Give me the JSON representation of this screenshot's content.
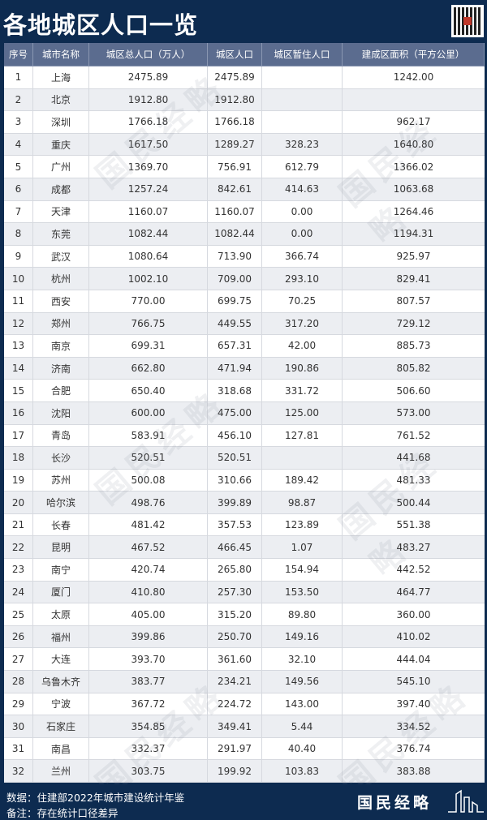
{
  "title": "各地城区人口一览",
  "headers": [
    "序号",
    "城市名称",
    "城区总人口（万人）",
    "城区人口",
    "城区暂住人口",
    "建成区面积（平方公里）"
  ],
  "rows": [
    [
      "1",
      "上海",
      "2475.89",
      "2475.89",
      "",
      "1242.00"
    ],
    [
      "2",
      "北京",
      "1912.80",
      "1912.80",
      "",
      ""
    ],
    [
      "3",
      "深圳",
      "1766.18",
      "1766.18",
      "",
      "962.17"
    ],
    [
      "4",
      "重庆",
      "1617.50",
      "1289.27",
      "328.23",
      "1640.80"
    ],
    [
      "5",
      "广州",
      "1369.70",
      "756.91",
      "612.79",
      "1366.02"
    ],
    [
      "6",
      "成都",
      "1257.24",
      "842.61",
      "414.63",
      "1063.68"
    ],
    [
      "7",
      "天津",
      "1160.07",
      "1160.07",
      "0.00",
      "1264.46"
    ],
    [
      "8",
      "东莞",
      "1082.44",
      "1082.44",
      "0.00",
      "1194.31"
    ],
    [
      "9",
      "武汉",
      "1080.64",
      "713.90",
      "366.74",
      "925.97"
    ],
    [
      "10",
      "杭州",
      "1002.10",
      "709.00",
      "293.10",
      "829.41"
    ],
    [
      "11",
      "西安",
      "770.00",
      "699.75",
      "70.25",
      "807.57"
    ],
    [
      "12",
      "郑州",
      "766.75",
      "449.55",
      "317.20",
      "729.12"
    ],
    [
      "13",
      "南京",
      "699.31",
      "657.31",
      "42.00",
      "885.73"
    ],
    [
      "14",
      "济南",
      "662.80",
      "471.94",
      "190.86",
      "805.82"
    ],
    [
      "15",
      "合肥",
      "650.40",
      "318.68",
      "331.72",
      "506.60"
    ],
    [
      "16",
      "沈阳",
      "600.00",
      "475.00",
      "125.00",
      "573.00"
    ],
    [
      "17",
      "青岛",
      "583.91",
      "456.10",
      "127.81",
      "761.52"
    ],
    [
      "18",
      "长沙",
      "520.51",
      "520.51",
      "",
      "441.68"
    ],
    [
      "19",
      "苏州",
      "500.08",
      "310.66",
      "189.42",
      "481.33"
    ],
    [
      "20",
      "哈尔滨",
      "498.76",
      "399.89",
      "98.87",
      "500.44"
    ],
    [
      "21",
      "长春",
      "481.42",
      "357.53",
      "123.89",
      "551.38"
    ],
    [
      "22",
      "昆明",
      "467.52",
      "466.45",
      "1.07",
      "483.27"
    ],
    [
      "23",
      "南宁",
      "420.74",
      "265.80",
      "154.94",
      "442.52"
    ],
    [
      "24",
      "厦门",
      "410.80",
      "257.30",
      "153.50",
      "464.77"
    ],
    [
      "25",
      "太原",
      "405.00",
      "315.20",
      "89.80",
      "360.00"
    ],
    [
      "26",
      "福州",
      "399.86",
      "250.70",
      "149.16",
      "410.02"
    ],
    [
      "27",
      "大连",
      "393.70",
      "361.60",
      "32.10",
      "444.04"
    ],
    [
      "28",
      "乌鲁木齐",
      "383.77",
      "234.21",
      "149.56",
      "545.10"
    ],
    [
      "29",
      "宁波",
      "367.72",
      "224.72",
      "143.00",
      "397.40"
    ],
    [
      "30",
      "石家庄",
      "354.85",
      "349.41",
      "5.44",
      "334.52"
    ],
    [
      "31",
      "南昌",
      "332.37",
      "291.97",
      "40.40",
      "376.74"
    ],
    [
      "32",
      "兰州",
      "303.75",
      "199.92",
      "103.83",
      "383.88"
    ]
  ],
  "footer": {
    "source": "数据：住建部2022年城市建设统计年鉴",
    "note": "备注：存在统计口径差异",
    "logo": "国民经略"
  },
  "watermark": "国民经略",
  "colors": {
    "navy": "#0d2b50",
    "header": "#5b6c8f",
    "alt_row": "#eceef2"
  }
}
